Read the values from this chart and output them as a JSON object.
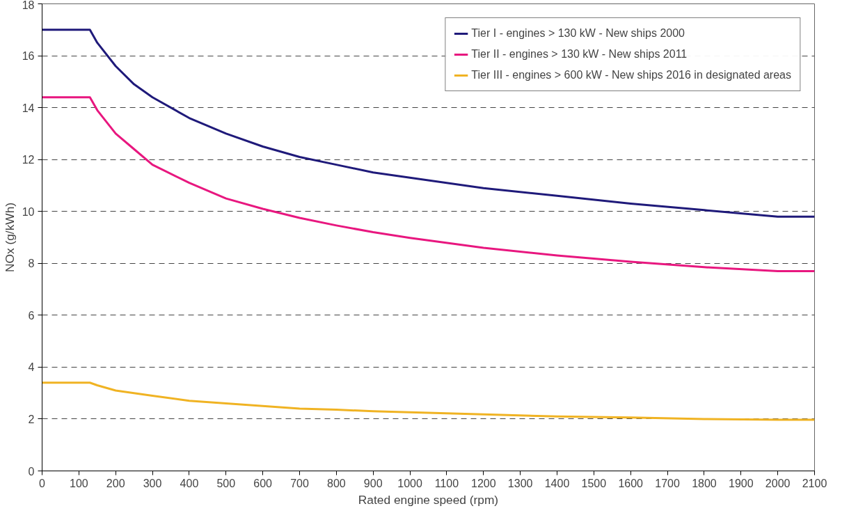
{
  "chart_data": {
    "type": "line",
    "xlabel": "Rated engine speed (rpm)",
    "ylabel": "NOx (g/kWh)",
    "xlim": [
      0,
      2100
    ],
    "xticks": [
      0,
      100,
      200,
      300,
      400,
      500,
      600,
      700,
      800,
      900,
      1000,
      1100,
      1200,
      1300,
      1400,
      1500,
      1600,
      1700,
      1800,
      1900,
      2000,
      2100
    ],
    "ylim": [
      0,
      18
    ],
    "yticks": [
      0,
      2,
      4,
      6,
      8,
      10,
      12,
      14,
      16,
      18
    ],
    "grid": "y",
    "legend": "top right",
    "line_style": "solid",
    "marker": "none",
    "x": [
      0,
      130,
      150,
      200,
      250,
      300,
      400,
      500,
      600,
      700,
      800,
      900,
      1000,
      1200,
      1400,
      1600,
      1800,
      2000,
      2100
    ],
    "series": [
      {
        "name": "Tier I - engines > 130 kW - New ships 2000",
        "color": "#1f1a7a",
        "values": [
          17.0,
          17.0,
          16.5,
          15.6,
          14.9,
          14.4,
          13.6,
          13.0,
          12.5,
          12.1,
          11.8,
          11.5,
          11.3,
          10.9,
          10.6,
          10.3,
          10.05,
          9.8,
          9.8
        ]
      },
      {
        "name": "Tier II - engines > 130 kW - New ships 2011",
        "color": "#e8177f",
        "values": [
          14.4,
          14.4,
          13.9,
          13.0,
          12.4,
          11.8,
          11.1,
          10.5,
          10.1,
          9.75,
          9.46,
          9.2,
          8.98,
          8.6,
          8.3,
          8.06,
          7.85,
          7.7,
          7.7
        ]
      },
      {
        "name": "Tier III - engines > 600 kW - New ships 2016 in designated areas",
        "color": "#f0b323",
        "values": [
          3.4,
          3.4,
          3.3,
          3.1,
          3.0,
          2.9,
          2.7,
          2.6,
          2.5,
          2.4,
          2.36,
          2.3,
          2.26,
          2.18,
          2.1,
          2.06,
          2.0,
          1.97,
          1.97
        ]
      }
    ]
  }
}
